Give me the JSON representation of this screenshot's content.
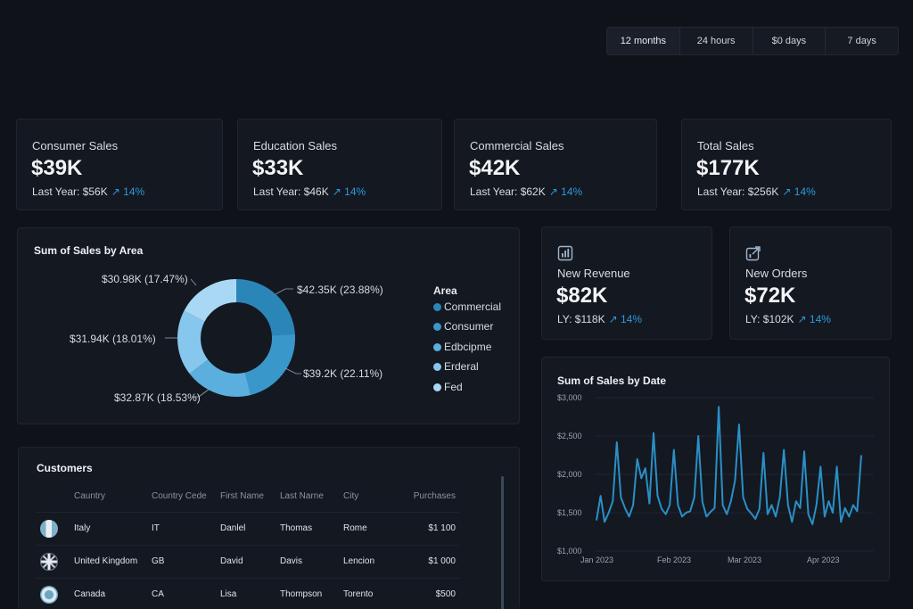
{
  "range_tabs": [
    "12 months",
    "24 hours",
    "$0 days",
    "7 days"
  ],
  "kpis": [
    {
      "label": "Consumer Sales",
      "value": "$39K",
      "sub": "Last Year: $56K",
      "trend": "↗ 14%"
    },
    {
      "label": "Education Sales",
      "value": "$33K",
      "sub": "Last Year: $46K",
      "trend": "↗ 14%"
    },
    {
      "label": "Commercial Sales",
      "value": "$42K",
      "sub": "Last Year: $62K",
      "trend": "↗ 14%"
    },
    {
      "label": "Total Sales",
      "value": "$177K",
      "sub": "Last Year: $256K",
      "trend": "↗ 14%"
    }
  ],
  "small_kpis": [
    {
      "label": "New Revenue",
      "value": "$82K",
      "sub": "LY: $118K",
      "trend": "↗ 14%",
      "icon": "chart-icon"
    },
    {
      "label": "New Orders",
      "value": "$72K",
      "sub": "LY: $102K",
      "trend": "↗ 14%",
      "icon": "orders-icon"
    }
  ],
  "donut": {
    "title": "Sum of Sales by Area",
    "legend_title": "Area",
    "legend": [
      "Commercial",
      "Consumer",
      "Edbcipme",
      "Erderal",
      "Fed"
    ],
    "labels": [
      "$42.35K (23.88%)",
      "$39.2K (22.11%)",
      "$32.87K (18.53%)",
      "$31.94K (18.01%)",
      "$30.98K (17.47%)"
    ]
  },
  "customers": {
    "title": "Customers",
    "columns": [
      "Cauntry",
      "Country Cede",
      "First Name",
      "Last Narne",
      "City",
      "Purchases"
    ],
    "rows": [
      {
        "country": "Italy",
        "code": "IT",
        "first": "Danlel",
        "last": "Thomas",
        "city": "Rome",
        "purchases": "$1 100"
      },
      {
        "country": "United Kingdom",
        "code": "GB",
        "first": "David",
        "last": "Davis",
        "city": "Lencion",
        "purchases": "$1 000"
      },
      {
        "country": "Canada",
        "code": "CA",
        "first": "Lisa",
        "last": "Thompson",
        "city": "Torento",
        "purchases": "$500"
      }
    ]
  },
  "colors": {
    "accent": "#2c9ad8",
    "donut": [
      "#2b86b8",
      "#3a97c9",
      "#5aafdf",
      "#86c7ee",
      "#a9d8f5"
    ]
  },
  "chart_data": {
    "type": "line",
    "title": "Sum of Sales by Date",
    "xlabel": "",
    "ylabel": "",
    "x_tick_labels": [
      "Jan 2023",
      "Feb 2023",
      "Mar 2023",
      "Apr 2023"
    ],
    "y_tick_labels": [
      "$3,000",
      "$2,500",
      "$2,000",
      "$1,500",
      "$1,000"
    ],
    "ylim": [
      1000,
      3000
    ],
    "series": [
      {
        "values": [
          1400,
          1720,
          1380,
          1500,
          1650,
          2420,
          1700,
          1560,
          1450,
          1600,
          2200,
          1950,
          2080,
          1620,
          2540,
          1720,
          1550,
          1480,
          1600,
          2320,
          1600,
          1450,
          1500,
          1520,
          1700,
          2500,
          1640,
          1450,
          1510,
          1560,
          2880,
          1600,
          1480,
          1650,
          1920,
          2650,
          1700,
          1550,
          1490,
          1420,
          1550,
          2280,
          1480,
          1600,
          1450,
          1700,
          2320,
          1600,
          1380,
          1650,
          1560,
          2300,
          1480,
          1350,
          1600,
          2100,
          1450,
          1650,
          1500,
          2100,
          1380,
          1560,
          1450,
          1600,
          1520,
          2250
        ]
      }
    ],
    "grid": true
  }
}
